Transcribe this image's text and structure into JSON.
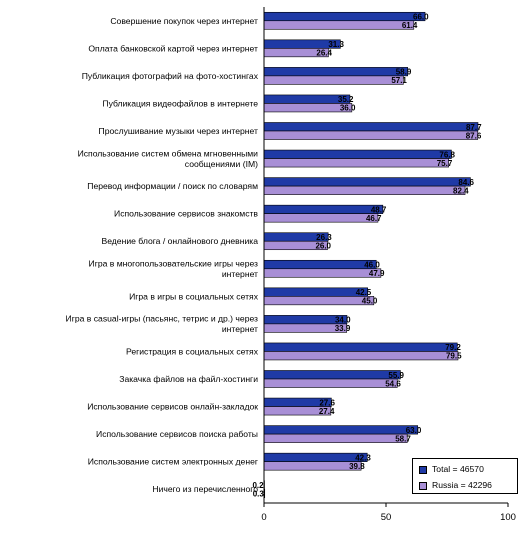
{
  "colors": {
    "total": "#1f3aa6",
    "russia": "#a88fd6",
    "grid": "#000000"
  },
  "chart_data": {
    "type": "bar",
    "orientation": "horizontal",
    "categories": [
      [
        "Совершение покупок через интернет"
      ],
      [
        "Оплата банковской картой через интернет"
      ],
      [
        "Публикация фотографий на фото-хостингах"
      ],
      [
        "Публикация видеофайлов в интернете"
      ],
      [
        "Прослушивание музыки через интернет"
      ],
      [
        "Использование систем обмена мгновенными",
        "сообщениями (IM)"
      ],
      [
        "Перевод информации / поиск по словарям"
      ],
      [
        "Использование сервисов знакомств"
      ],
      [
        "Ведение блога / онлайнового дневника"
      ],
      [
        "Игра в многопользовательские игры через",
        "интернет"
      ],
      [
        "Игра в игры в социальных сетях"
      ],
      [
        "Игра в casual-игры (пасьянс, тетрис и др.) через",
        "интернет"
      ],
      [
        "Регистрация в социальных сетях"
      ],
      [
        "Закачка файлов на файл-хостинги"
      ],
      [
        "Использование сервисов онлайн-закладок"
      ],
      [
        "Использование сервисов поиска работы"
      ],
      [
        "Использование систем электронных денег"
      ],
      [
        "Ничего из перечисленного"
      ]
    ],
    "series": [
      {
        "name": "Total = 46570",
        "values": [
          66.0,
          31.3,
          58.9,
          35.2,
          87.7,
          76.8,
          84.6,
          48.7,
          26.3,
          46.0,
          42.5,
          34.0,
          79.2,
          55.9,
          27.6,
          63.0,
          42.3,
          0.2
        ]
      },
      {
        "name": "Russia = 42296",
        "values": [
          61.4,
          26.4,
          57.1,
          36.0,
          87.6,
          75.7,
          82.4,
          46.7,
          26.0,
          47.9,
          45.0,
          33.9,
          79.5,
          54.6,
          27.4,
          58.7,
          39.8,
          0.3
        ]
      }
    ],
    "xlim": [
      0,
      100
    ],
    "xticks": [
      "0",
      "50",
      "100"
    ],
    "legend": "bottom-right",
    "grid": false
  }
}
